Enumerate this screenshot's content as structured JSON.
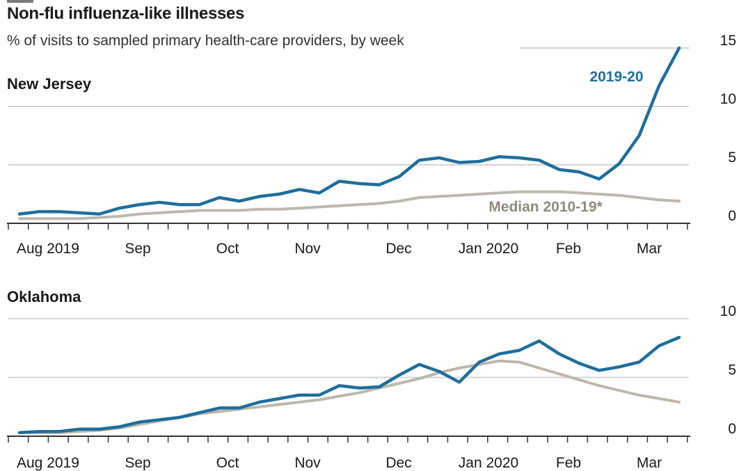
{
  "title": "Non-flu influenza-like illnesses",
  "subtitle": "% of visits to sampled primary health-care providers, by week",
  "colors": {
    "series": "#1f6e9c",
    "median": "#bdb8ad",
    "grid": "#d4d4d4",
    "axis": "#333333",
    "median_label": "#8f8a80"
  },
  "chart_data": [
    {
      "type": "line",
      "panel": "New Jersey",
      "x_tick_labels": [
        "Aug 2019",
        "Sep",
        "Oct",
        "Nov",
        "Dec",
        "Jan 2020",
        "Feb",
        "Mar"
      ],
      "x_weeks": 35,
      "ylim": [
        0,
        15
      ],
      "yticks": [
        0,
        5,
        10,
        15
      ],
      "y_tick_labels": [
        "0",
        "5",
        "10",
        "15"
      ],
      "grid": true,
      "series": [
        {
          "name": "2019-20",
          "values": [
            0.8,
            1.0,
            1.0,
            0.9,
            0.8,
            1.3,
            1.6,
            1.8,
            1.6,
            1.6,
            2.2,
            1.9,
            2.3,
            2.5,
            2.9,
            2.6,
            3.6,
            3.4,
            3.3,
            4.0,
            5.4,
            5.6,
            5.2,
            5.3,
            5.7,
            5.6,
            5.4,
            4.6,
            4.4,
            3.8,
            5.1,
            7.5,
            11.8,
            15.0
          ],
          "label": "2019-20"
        },
        {
          "name": "Median 2010-19*",
          "values": [
            0.4,
            0.4,
            0.4,
            0.4,
            0.5,
            0.6,
            0.8,
            0.9,
            1.0,
            1.1,
            1.1,
            1.1,
            1.2,
            1.2,
            1.3,
            1.4,
            1.5,
            1.6,
            1.7,
            1.9,
            2.2,
            2.3,
            2.4,
            2.5,
            2.6,
            2.7,
            2.7,
            2.7,
            2.6,
            2.5,
            2.4,
            2.2,
            2.0,
            1.9
          ],
          "label": "Median 2010-19*"
        }
      ]
    },
    {
      "type": "line",
      "panel": "Oklahoma",
      "x_tick_labels": [
        "Aug 2019",
        "Sep",
        "Oct",
        "Nov",
        "Dec",
        "Jan 2020",
        "Feb",
        "Mar"
      ],
      "x_weeks": 35,
      "ylim": [
        0,
        10
      ],
      "yticks": [
        0,
        5,
        10
      ],
      "y_tick_labels": [
        "0",
        "5",
        "10"
      ],
      "grid": true,
      "series": [
        {
          "name": "2019-20",
          "values": [
            0.3,
            0.4,
            0.4,
            0.6,
            0.6,
            0.8,
            1.2,
            1.4,
            1.6,
            2.0,
            2.4,
            2.4,
            2.9,
            3.2,
            3.5,
            3.5,
            4.3,
            4.1,
            4.2,
            5.2,
            6.1,
            5.5,
            4.6,
            6.3,
            7.0,
            7.3,
            8.1,
            7.0,
            6.2,
            5.6,
            5.9,
            6.3,
            7.7,
            8.4
          ],
          "label": ""
        },
        {
          "name": "Median 2010-19*",
          "values": [
            0.3,
            0.3,
            0.3,
            0.4,
            0.5,
            0.7,
            1.0,
            1.3,
            1.6,
            1.9,
            2.1,
            2.3,
            2.5,
            2.7,
            2.9,
            3.1,
            3.4,
            3.7,
            4.1,
            4.5,
            4.9,
            5.4,
            5.8,
            6.1,
            6.4,
            6.3,
            5.8,
            5.3,
            4.8,
            4.3,
            3.9,
            3.5,
            3.2,
            2.9
          ],
          "label": ""
        }
      ]
    }
  ]
}
